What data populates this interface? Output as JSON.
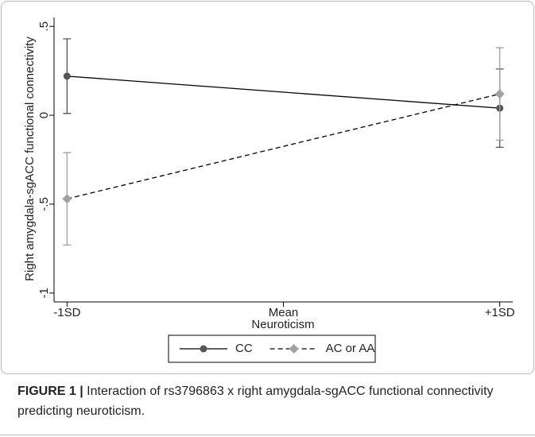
{
  "chart_data": {
    "type": "line",
    "ylabel": "Right amygdala-sgACC functional connectivity",
    "xlabel": "Neuroticism",
    "x": [
      -1,
      1
    ],
    "xlim": [
      -1.06,
      1.06
    ],
    "xticks": [
      {
        "value": -1,
        "label": "-1SD"
      },
      {
        "value": 0,
        "label": "Mean"
      },
      {
        "value": 1,
        "label": "+1SD"
      }
    ],
    "ylim": [
      -1.05,
      0.55
    ],
    "yticks": [
      {
        "value": 0.5,
        "label": ".5"
      },
      0,
      {
        "value": -0.5,
        "label": "-.5"
      },
      -1
    ],
    "line_color": "#000000",
    "legend": "bottom",
    "series": [
      {
        "name": "CC",
        "color": "#555555",
        "line_style": "solid",
        "marker": "circle",
        "values": [
          0.22,
          0.04
        ],
        "errors": [
          0.21,
          0.22
        ]
      },
      {
        "name": "AC or AA",
        "color": "#a0a0a0",
        "line_style": "dashed",
        "marker": "diamond",
        "values": [
          -0.47,
          0.12
        ],
        "errors": [
          0.26,
          0.26
        ]
      }
    ]
  },
  "caption": {
    "label": "FIGURE 1 |",
    "text": "Interaction of rs3796863 x right amygdala-sgACC functional connectivity predicting neuroticism."
  }
}
